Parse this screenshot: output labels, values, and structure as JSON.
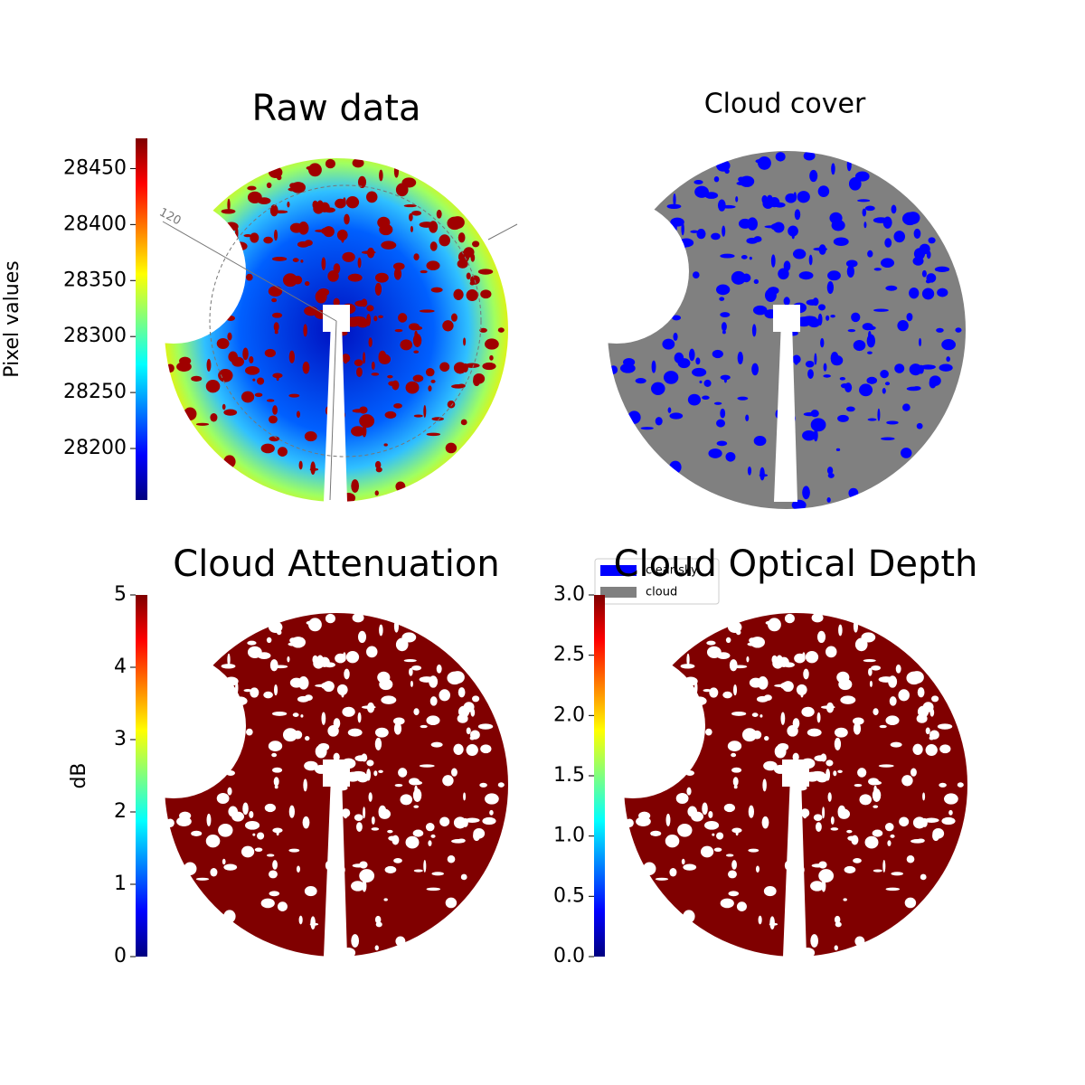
{
  "chart_data": [
    {
      "type": "image",
      "title": "Raw data",
      "colormap": "jet",
      "ylabel": "Pixel values",
      "ylim": [
        28154,
        28477
      ],
      "yticks": [
        28200,
        28250,
        28300,
        28350,
        28400,
        28450
      ],
      "annotations": [
        "120"
      ],
      "style": "raw"
    },
    {
      "type": "image",
      "title": "Cloud cover",
      "style": "mask",
      "legend": [
        {
          "name": "clear sky",
          "color": "#0000ff"
        },
        {
          "name": "cloud",
          "color": "#808080"
        }
      ]
    },
    {
      "type": "image",
      "title": "Cloud Attenuation",
      "colormap": "jet",
      "ylabel": "dB",
      "ylim": [
        0,
        5
      ],
      "yticks": [
        0,
        1,
        2,
        3,
        4,
        5
      ],
      "style": "dark"
    },
    {
      "type": "image",
      "title": "Cloud Optical Depth",
      "colormap": "jet",
      "ylim": [
        0,
        3
      ],
      "yticks": [
        {
          "value": 0,
          "label": "0.0"
        },
        {
          "value": 0.5,
          "label": "0.5"
        },
        {
          "value": 1,
          "label": "1.0"
        },
        {
          "value": 1.5,
          "label": "1.5"
        },
        {
          "value": 2,
          "label": "2.0"
        },
        {
          "value": 2.5,
          "label": "2.5"
        },
        {
          "value": 3,
          "label": "3.0"
        }
      ],
      "style": "dark"
    }
  ]
}
